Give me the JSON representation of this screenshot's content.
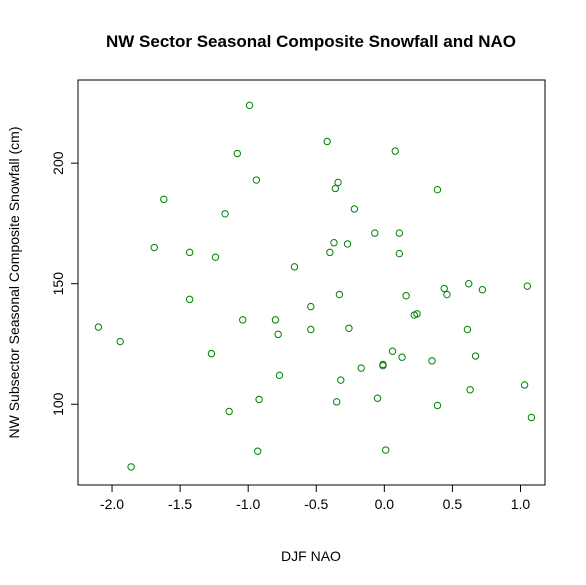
{
  "chart_data": {
    "type": "scatter",
    "title": "NW Sector Seasonal Composite Snowfall and NAO",
    "xlabel": "DJF NAO",
    "ylabel": "NW Subsector Seasonal Composite Snowfall (cm)",
    "xlim": [
      -2.25,
      1.18
    ],
    "ylim": [
      66.5,
      234.5
    ],
    "xticks": [
      -2.0,
      -1.5,
      -1.0,
      -0.5,
      0.0,
      0.5,
      1.0
    ],
    "xtick_labels": [
      "-2.0",
      "-1.5",
      "-1.0",
      "-0.5",
      "0.0",
      "0.5",
      "1.0"
    ],
    "yticks": [
      100,
      150,
      200
    ],
    "ytick_labels": [
      "100",
      "150",
      "200"
    ],
    "grid": false,
    "legend": "none",
    "marker": "open-circle",
    "point_color": "#008000",
    "points": [
      {
        "x": -2.1,
        "y": 132
      },
      {
        "x": -1.94,
        "y": 126
      },
      {
        "x": -1.86,
        "y": 74
      },
      {
        "x": -1.69,
        "y": 165
      },
      {
        "x": -1.62,
        "y": 185
      },
      {
        "x": -1.43,
        "y": 163
      },
      {
        "x": -1.43,
        "y": 143.5
      },
      {
        "x": -1.27,
        "y": 121
      },
      {
        "x": -1.24,
        "y": 161
      },
      {
        "x": -1.17,
        "y": 179
      },
      {
        "x": -1.14,
        "y": 97
      },
      {
        "x": -1.08,
        "y": 204
      },
      {
        "x": -1.04,
        "y": 135
      },
      {
        "x": -0.99,
        "y": 224
      },
      {
        "x": -0.94,
        "y": 193
      },
      {
        "x": -0.92,
        "y": 102
      },
      {
        "x": -0.93,
        "y": 80.5
      },
      {
        "x": -0.8,
        "y": 135
      },
      {
        "x": -0.78,
        "y": 129
      },
      {
        "x": -0.77,
        "y": 112
      },
      {
        "x": -0.66,
        "y": 157
      },
      {
        "x": -0.54,
        "y": 140.5
      },
      {
        "x": -0.54,
        "y": 131
      },
      {
        "x": -0.42,
        "y": 209
      },
      {
        "x": -0.4,
        "y": 163
      },
      {
        "x": -0.37,
        "y": 167
      },
      {
        "x": -0.36,
        "y": 189.5
      },
      {
        "x": -0.34,
        "y": 192
      },
      {
        "x": -0.33,
        "y": 145.5
      },
      {
        "x": -0.32,
        "y": 110
      },
      {
        "x": -0.35,
        "y": 101
      },
      {
        "x": -0.27,
        "y": 166.5
      },
      {
        "x": -0.26,
        "y": 131.5
      },
      {
        "x": -0.22,
        "y": 181
      },
      {
        "x": -0.17,
        "y": 115
      },
      {
        "x": -0.07,
        "y": 171
      },
      {
        "x": -0.05,
        "y": 102.5
      },
      {
        "x": -0.01,
        "y": 116
      },
      {
        "x": -0.01,
        "y": 116.5
      },
      {
        "x": 0.01,
        "y": 81
      },
      {
        "x": 0.06,
        "y": 122
      },
      {
        "x": 0.08,
        "y": 205
      },
      {
        "x": 0.11,
        "y": 171
      },
      {
        "x": 0.11,
        "y": 162.5
      },
      {
        "x": 0.13,
        "y": 119.5
      },
      {
        "x": 0.16,
        "y": 145
      },
      {
        "x": 0.22,
        "y": 137
      },
      {
        "x": 0.24,
        "y": 137.5
      },
      {
        "x": 0.35,
        "y": 118
      },
      {
        "x": 0.39,
        "y": 189
      },
      {
        "x": 0.39,
        "y": 99.5
      },
      {
        "x": 0.44,
        "y": 148
      },
      {
        "x": 0.46,
        "y": 145.5
      },
      {
        "x": 0.61,
        "y": 131
      },
      {
        "x": 0.62,
        "y": 150
      },
      {
        "x": 0.63,
        "y": 106
      },
      {
        "x": 0.67,
        "y": 120
      },
      {
        "x": 0.72,
        "y": 147.5
      },
      {
        "x": 1.03,
        "y": 108
      },
      {
        "x": 1.05,
        "y": 149
      },
      {
        "x": 1.08,
        "y": 94.5
      }
    ]
  }
}
